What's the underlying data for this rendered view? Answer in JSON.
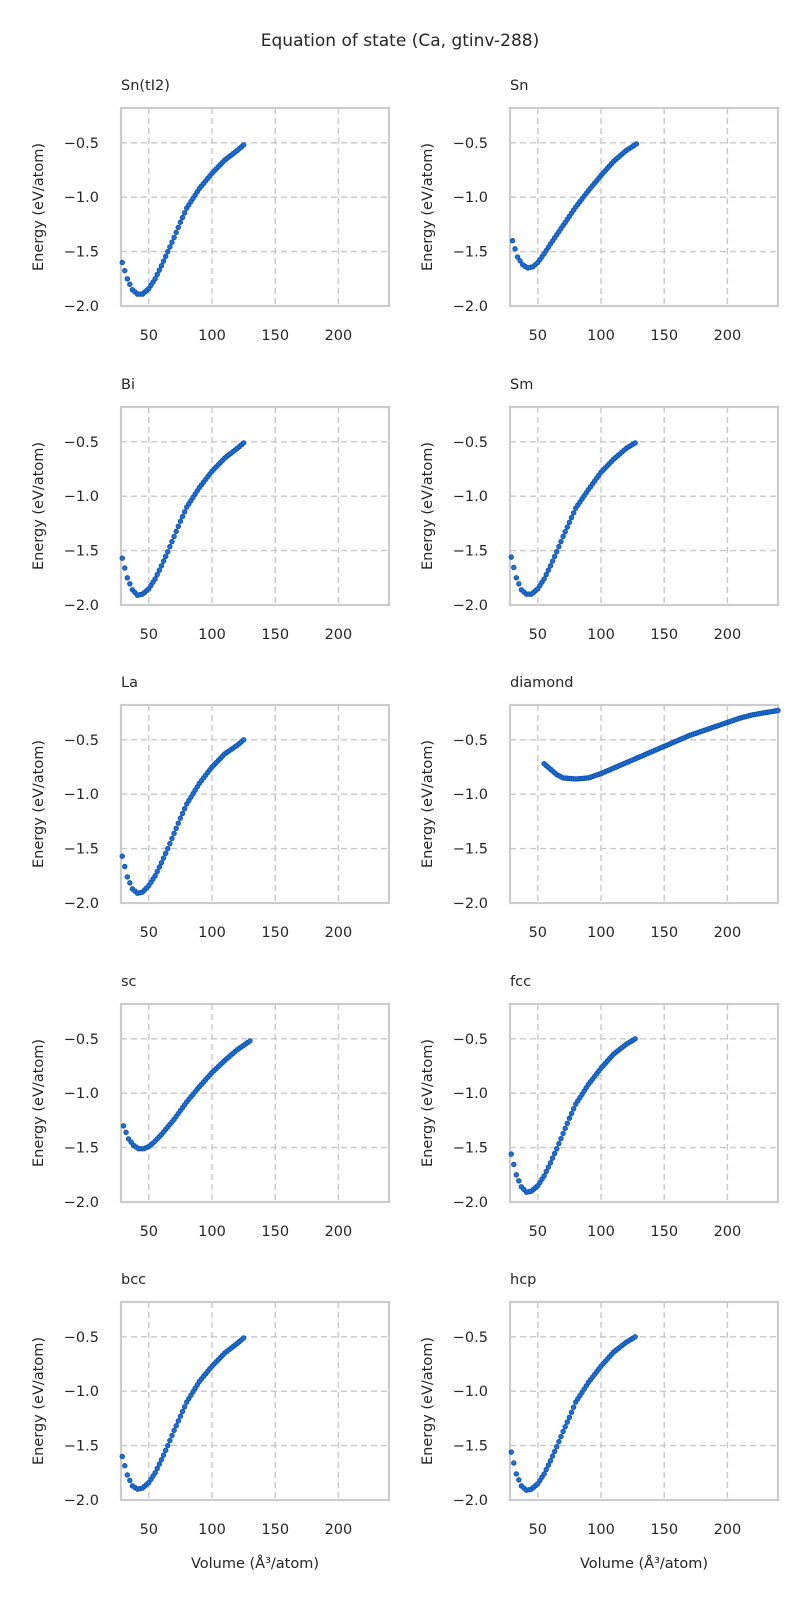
{
  "figure": {
    "title": "Equation of state (Ca, gtinv-288)"
  },
  "colors": {
    "points": "#1f6fd6",
    "point_edge": "#0d4fa8",
    "grid": "#c8c8c8",
    "frame": "#cccccc",
    "text": "#262626"
  },
  "chart_data": [
    {
      "type": "scatter",
      "title": "Sn(tI2)",
      "xlabel": "",
      "ylabel": "Energy (eV/atom)",
      "xlim": [
        28,
        240
      ],
      "ylim": [
        -2.0,
        -0.18
      ],
      "xticks": [
        50,
        100,
        150,
        200
      ],
      "yticks": [
        -2.0,
        -1.5,
        -1.0,
        -0.5
      ],
      "grid": true,
      "x": [
        29,
        33,
        37,
        41,
        45,
        50,
        55,
        60,
        65,
        70,
        75,
        80,
        90,
        100,
        110,
        120,
        125
      ],
      "y": [
        -1.6,
        -1.75,
        -1.85,
        -1.89,
        -1.89,
        -1.84,
        -1.75,
        -1.63,
        -1.5,
        -1.37,
        -1.23,
        -1.1,
        -0.92,
        -0.78,
        -0.66,
        -0.57,
        -0.52
      ]
    },
    {
      "type": "scatter",
      "title": "Sn",
      "xlabel": "",
      "ylabel": "Energy (eV/atom)",
      "xlim": [
        28,
        240
      ],
      "ylim": [
        -2.0,
        -0.18
      ],
      "xticks": [
        50,
        100,
        150,
        200
      ],
      "yticks": [
        -2.0,
        -1.5,
        -1.0,
        -0.5
      ],
      "grid": true,
      "x": [
        30,
        34,
        38,
        42,
        46,
        50,
        55,
        60,
        70,
        80,
        90,
        100,
        110,
        120,
        128
      ],
      "y": [
        -1.4,
        -1.55,
        -1.62,
        -1.65,
        -1.64,
        -1.6,
        -1.52,
        -1.43,
        -1.26,
        -1.09,
        -0.94,
        -0.8,
        -0.67,
        -0.57,
        -0.51
      ]
    },
    {
      "type": "scatter",
      "title": "Bi",
      "xlabel": "",
      "ylabel": "Energy (eV/atom)",
      "xlim": [
        28,
        240
      ],
      "ylim": [
        -2.0,
        -0.18
      ],
      "xticks": [
        50,
        100,
        150,
        200
      ],
      "yticks": [
        -2.0,
        -1.5,
        -1.0,
        -0.5
      ],
      "grid": true,
      "x": [
        29,
        33,
        37,
        41,
        45,
        50,
        55,
        60,
        65,
        70,
        75,
        80,
        90,
        100,
        110,
        120,
        125
      ],
      "y": [
        -1.57,
        -1.75,
        -1.86,
        -1.91,
        -1.9,
        -1.85,
        -1.76,
        -1.64,
        -1.51,
        -1.37,
        -1.23,
        -1.1,
        -0.92,
        -0.77,
        -0.65,
        -0.56,
        -0.51
      ]
    },
    {
      "type": "scatter",
      "title": "Sm",
      "xlabel": "",
      "ylabel": "Energy (eV/atom)",
      "xlim": [
        28,
        240
      ],
      "ylim": [
        -2.0,
        -0.18
      ],
      "xticks": [
        50,
        100,
        150,
        200
      ],
      "yticks": [
        -2.0,
        -1.5,
        -1.0,
        -0.5
      ],
      "grid": true,
      "x": [
        29,
        33,
        37,
        41,
        45,
        50,
        55,
        60,
        65,
        70,
        75,
        80,
        90,
        100,
        110,
        120,
        127
      ],
      "y": [
        -1.56,
        -1.75,
        -1.86,
        -1.9,
        -1.9,
        -1.85,
        -1.76,
        -1.64,
        -1.51,
        -1.37,
        -1.24,
        -1.11,
        -0.94,
        -0.78,
        -0.66,
        -0.56,
        -0.51
      ]
    },
    {
      "type": "scatter",
      "title": "La",
      "xlabel": "",
      "ylabel": "Energy (eV/atom)",
      "xlim": [
        28,
        240
      ],
      "ylim": [
        -2.0,
        -0.18
      ],
      "xticks": [
        50,
        100,
        150,
        200
      ],
      "yticks": [
        -2.0,
        -1.5,
        -1.0,
        -0.5
      ],
      "grid": true,
      "x": [
        29,
        33,
        37,
        41,
        45,
        50,
        55,
        60,
        65,
        70,
        75,
        80,
        90,
        100,
        110,
        120,
        125
      ],
      "y": [
        -1.57,
        -1.76,
        -1.87,
        -1.91,
        -1.9,
        -1.84,
        -1.75,
        -1.63,
        -1.5,
        -1.36,
        -1.22,
        -1.09,
        -0.9,
        -0.75,
        -0.63,
        -0.55,
        -0.5
      ]
    },
    {
      "type": "scatter",
      "title": "diamond",
      "xlabel": "",
      "ylabel": "Energy (eV/atom)",
      "xlim": [
        28,
        240
      ],
      "ylim": [
        -2.0,
        -0.18
      ],
      "xticks": [
        50,
        100,
        150,
        200
      ],
      "yticks": [
        -2.0,
        -1.5,
        -1.0,
        -0.5
      ],
      "grid": true,
      "x": [
        55,
        60,
        65,
        70,
        80,
        90,
        100,
        110,
        120,
        130,
        140,
        150,
        160,
        170,
        180,
        190,
        200,
        210,
        220,
        230,
        240
      ],
      "y": [
        -0.72,
        -0.77,
        -0.82,
        -0.85,
        -0.86,
        -0.85,
        -0.81,
        -0.76,
        -0.71,
        -0.66,
        -0.61,
        -0.56,
        -0.51,
        -0.46,
        -0.42,
        -0.38,
        -0.34,
        -0.3,
        -0.27,
        -0.25,
        -0.23
      ]
    },
    {
      "type": "scatter",
      "title": "sc",
      "xlabel": "",
      "ylabel": "Energy (eV/atom)",
      "xlim": [
        28,
        240
      ],
      "ylim": [
        -2.0,
        -0.18
      ],
      "xticks": [
        50,
        100,
        150,
        200
      ],
      "yticks": [
        -2.0,
        -1.5,
        -1.0,
        -0.5
      ],
      "grid": true,
      "x": [
        30,
        34,
        38,
        42,
        46,
        50,
        55,
        60,
        70,
        80,
        90,
        100,
        110,
        120,
        130
      ],
      "y": [
        -1.3,
        -1.42,
        -1.48,
        -1.51,
        -1.51,
        -1.49,
        -1.44,
        -1.38,
        -1.24,
        -1.08,
        -0.94,
        -0.81,
        -0.7,
        -0.6,
        -0.52
      ]
    },
    {
      "type": "scatter",
      "title": "fcc",
      "xlabel": "",
      "ylabel": "Energy (eV/atom)",
      "xlim": [
        28,
        240
      ],
      "ylim": [
        -2.0,
        -0.18
      ],
      "xticks": [
        50,
        100,
        150,
        200
      ],
      "yticks": [
        -2.0,
        -1.5,
        -1.0,
        -0.5
      ],
      "grid": true,
      "x": [
        29,
        33,
        37,
        41,
        45,
        50,
        55,
        60,
        65,
        70,
        75,
        80,
        90,
        100,
        110,
        120,
        127
      ],
      "y": [
        -1.56,
        -1.75,
        -1.86,
        -1.91,
        -1.9,
        -1.85,
        -1.76,
        -1.64,
        -1.51,
        -1.37,
        -1.23,
        -1.1,
        -0.92,
        -0.77,
        -0.64,
        -0.55,
        -0.5
      ]
    },
    {
      "type": "scatter",
      "title": "bcc",
      "xlabel": "Volume (Å³/atom)",
      "ylabel": "Energy (eV/atom)",
      "xlim": [
        28,
        240
      ],
      "ylim": [
        -2.0,
        -0.18
      ],
      "xticks": [
        50,
        100,
        150,
        200
      ],
      "yticks": [
        -2.0,
        -1.5,
        -1.0,
        -0.5
      ],
      "grid": true,
      "x": [
        29,
        33,
        37,
        41,
        45,
        50,
        55,
        60,
        65,
        70,
        75,
        80,
        90,
        100,
        110,
        120,
        125
      ],
      "y": [
        -1.6,
        -1.77,
        -1.87,
        -1.9,
        -1.89,
        -1.84,
        -1.75,
        -1.63,
        -1.5,
        -1.36,
        -1.23,
        -1.1,
        -0.91,
        -0.77,
        -0.65,
        -0.56,
        -0.51
      ]
    },
    {
      "type": "scatter",
      "title": "hcp",
      "xlabel": "Volume (Å³/atom)",
      "ylabel": "Energy (eV/atom)",
      "xlim": [
        28,
        240
      ],
      "ylim": [
        -2.0,
        -0.18
      ],
      "xticks": [
        50,
        100,
        150,
        200
      ],
      "yticks": [
        -2.0,
        -1.5,
        -1.0,
        -0.5
      ],
      "grid": true,
      "x": [
        29,
        33,
        37,
        41,
        45,
        50,
        55,
        60,
        65,
        70,
        75,
        80,
        90,
        100,
        110,
        120,
        127
      ],
      "y": [
        -1.56,
        -1.76,
        -1.87,
        -1.91,
        -1.9,
        -1.85,
        -1.76,
        -1.64,
        -1.51,
        -1.37,
        -1.24,
        -1.1,
        -0.92,
        -0.77,
        -0.64,
        -0.55,
        -0.5
      ]
    }
  ]
}
